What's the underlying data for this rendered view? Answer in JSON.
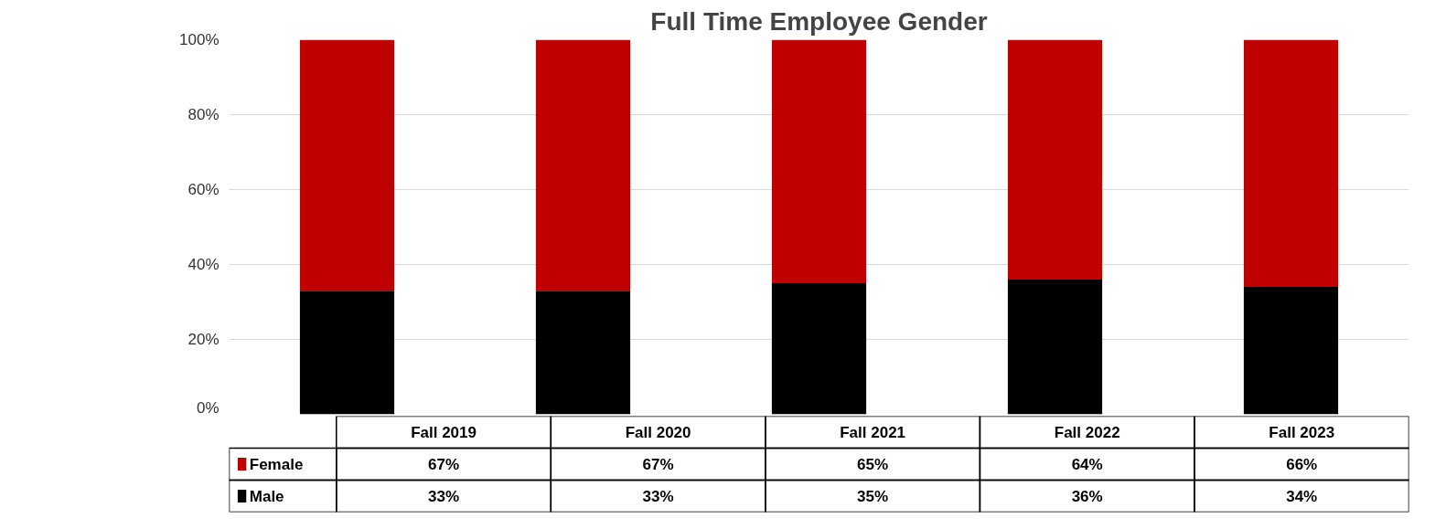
{
  "chart_data": {
    "type": "bar",
    "title": "Full Time Employee Gender",
    "stacked": true,
    "categories": [
      "Fall 2019",
      "Fall 2020",
      "Fall 2021",
      "Fall 2022",
      "Fall 2023"
    ],
    "series": [
      {
        "name": "Male",
        "color": "#000000",
        "values": [
          33,
          33,
          35,
          36,
          34
        ],
        "value_labels": [
          "33%",
          "33%",
          "35%",
          "36%",
          "34%"
        ]
      },
      {
        "name": "Female",
        "color": "#c00000",
        "values": [
          67,
          67,
          65,
          64,
          66
        ],
        "value_labels": [
          "67%",
          "67%",
          "65%",
          "64%",
          "66%"
        ]
      }
    ],
    "ylim": [
      0,
      100
    ],
    "yticks": [
      {
        "value": 0,
        "label": "0%"
      },
      {
        "value": 20,
        "label": "20%"
      },
      {
        "value": 40,
        "label": "40%"
      },
      {
        "value": 60,
        "label": "60%"
      },
      {
        "value": 80,
        "label": "80%"
      },
      {
        "value": 100,
        "label": "100%"
      }
    ],
    "grid": "y",
    "legend": "bottom"
  }
}
